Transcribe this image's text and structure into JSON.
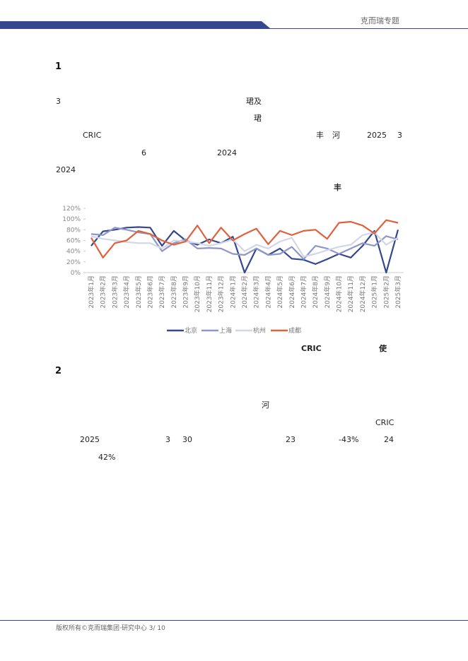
{
  "header": {
    "brand": "克而瑞专题"
  },
  "sections": [
    {
      "heading": "1",
      "fragments": [
        "3",
        "珺及",
        "珺",
        "CRIC",
        "丰",
        "河",
        "2025",
        "3",
        "6",
        "2024",
        "2024",
        "丰"
      ]
    },
    {
      "heading": "2",
      "fragments": [
        "河",
        "CRIC",
        "2025",
        "3",
        "30",
        "23",
        "-43%",
        "24",
        "42%"
      ]
    }
  ],
  "figure": {
    "note_fragments": [
      "CRIC",
      "使"
    ]
  },
  "chart_data": {
    "type": "line",
    "categories": [
      "2023年1月",
      "2023年2月",
      "2023年3月",
      "2023年4月",
      "2023年5月",
      "2023年6月",
      "2023年7月",
      "2023年8月",
      "2023年9月",
      "2023年10月",
      "2023年11月",
      "2023年12月",
      "2024年1月",
      "2024年2月",
      "2024年3月",
      "2024年4月",
      "2024年5月",
      "2024年6月",
      "2024年7月",
      "2024年8月",
      "2024年9月",
      "2024年10月",
      "2024年11月",
      "2024年12月",
      "2025年1月",
      "2025年2月",
      "2025年3月"
    ],
    "series": [
      {
        "name": "北京",
        "color": "#34478f",
        "values": [
          50,
          77,
          80,
          84,
          85,
          84,
          50,
          78,
          60,
          52,
          62,
          55,
          67,
          0,
          45,
          33,
          45,
          26,
          24,
          16,
          25,
          35,
          28,
          50,
          78,
          0,
          80
        ]
      },
      {
        "name": "上海",
        "color": "#8e97c8",
        "values": [
          72,
          70,
          84,
          80,
          75,
          72,
          40,
          55,
          62,
          45,
          46,
          45,
          35,
          33,
          45,
          33,
          35,
          48,
          25,
          50,
          45,
          35,
          45,
          55,
          50,
          68,
          62
        ]
      },
      {
        "name": "杭州",
        "color": "#d3d6e6",
        "values": [
          68,
          63,
          60,
          57,
          55,
          55,
          45,
          60,
          58,
          55,
          50,
          55,
          62,
          40,
          52,
          45,
          58,
          65,
          30,
          35,
          42,
          48,
          52,
          70,
          75,
          52,
          65
        ]
      },
      {
        "name": "成都",
        "color": "#e0603b",
        "values": [
          65,
          28,
          55,
          60,
          78,
          72,
          60,
          52,
          58,
          88,
          55,
          84,
          60,
          72,
          82,
          53,
          78,
          70,
          78,
          80,
          63,
          93,
          95,
          88,
          73,
          98,
          93
        ]
      }
    ],
    "ylim": [
      0,
      120
    ],
    "yticks": [
      {
        "value": 0,
        "label": "0%"
      },
      {
        "value": 20,
        "label": "20%"
      },
      {
        "value": 40,
        "label": "40%"
      },
      {
        "value": 60,
        "label": "60%"
      },
      {
        "value": 80,
        "label": "80%"
      },
      {
        "value": 100,
        "label": "100%"
      },
      {
        "value": 120,
        "label": "120%"
      }
    ],
    "legend": "bottom"
  },
  "footer": {
    "text": "版权所有©克而瑞集团·研究中心 3/ 10"
  }
}
